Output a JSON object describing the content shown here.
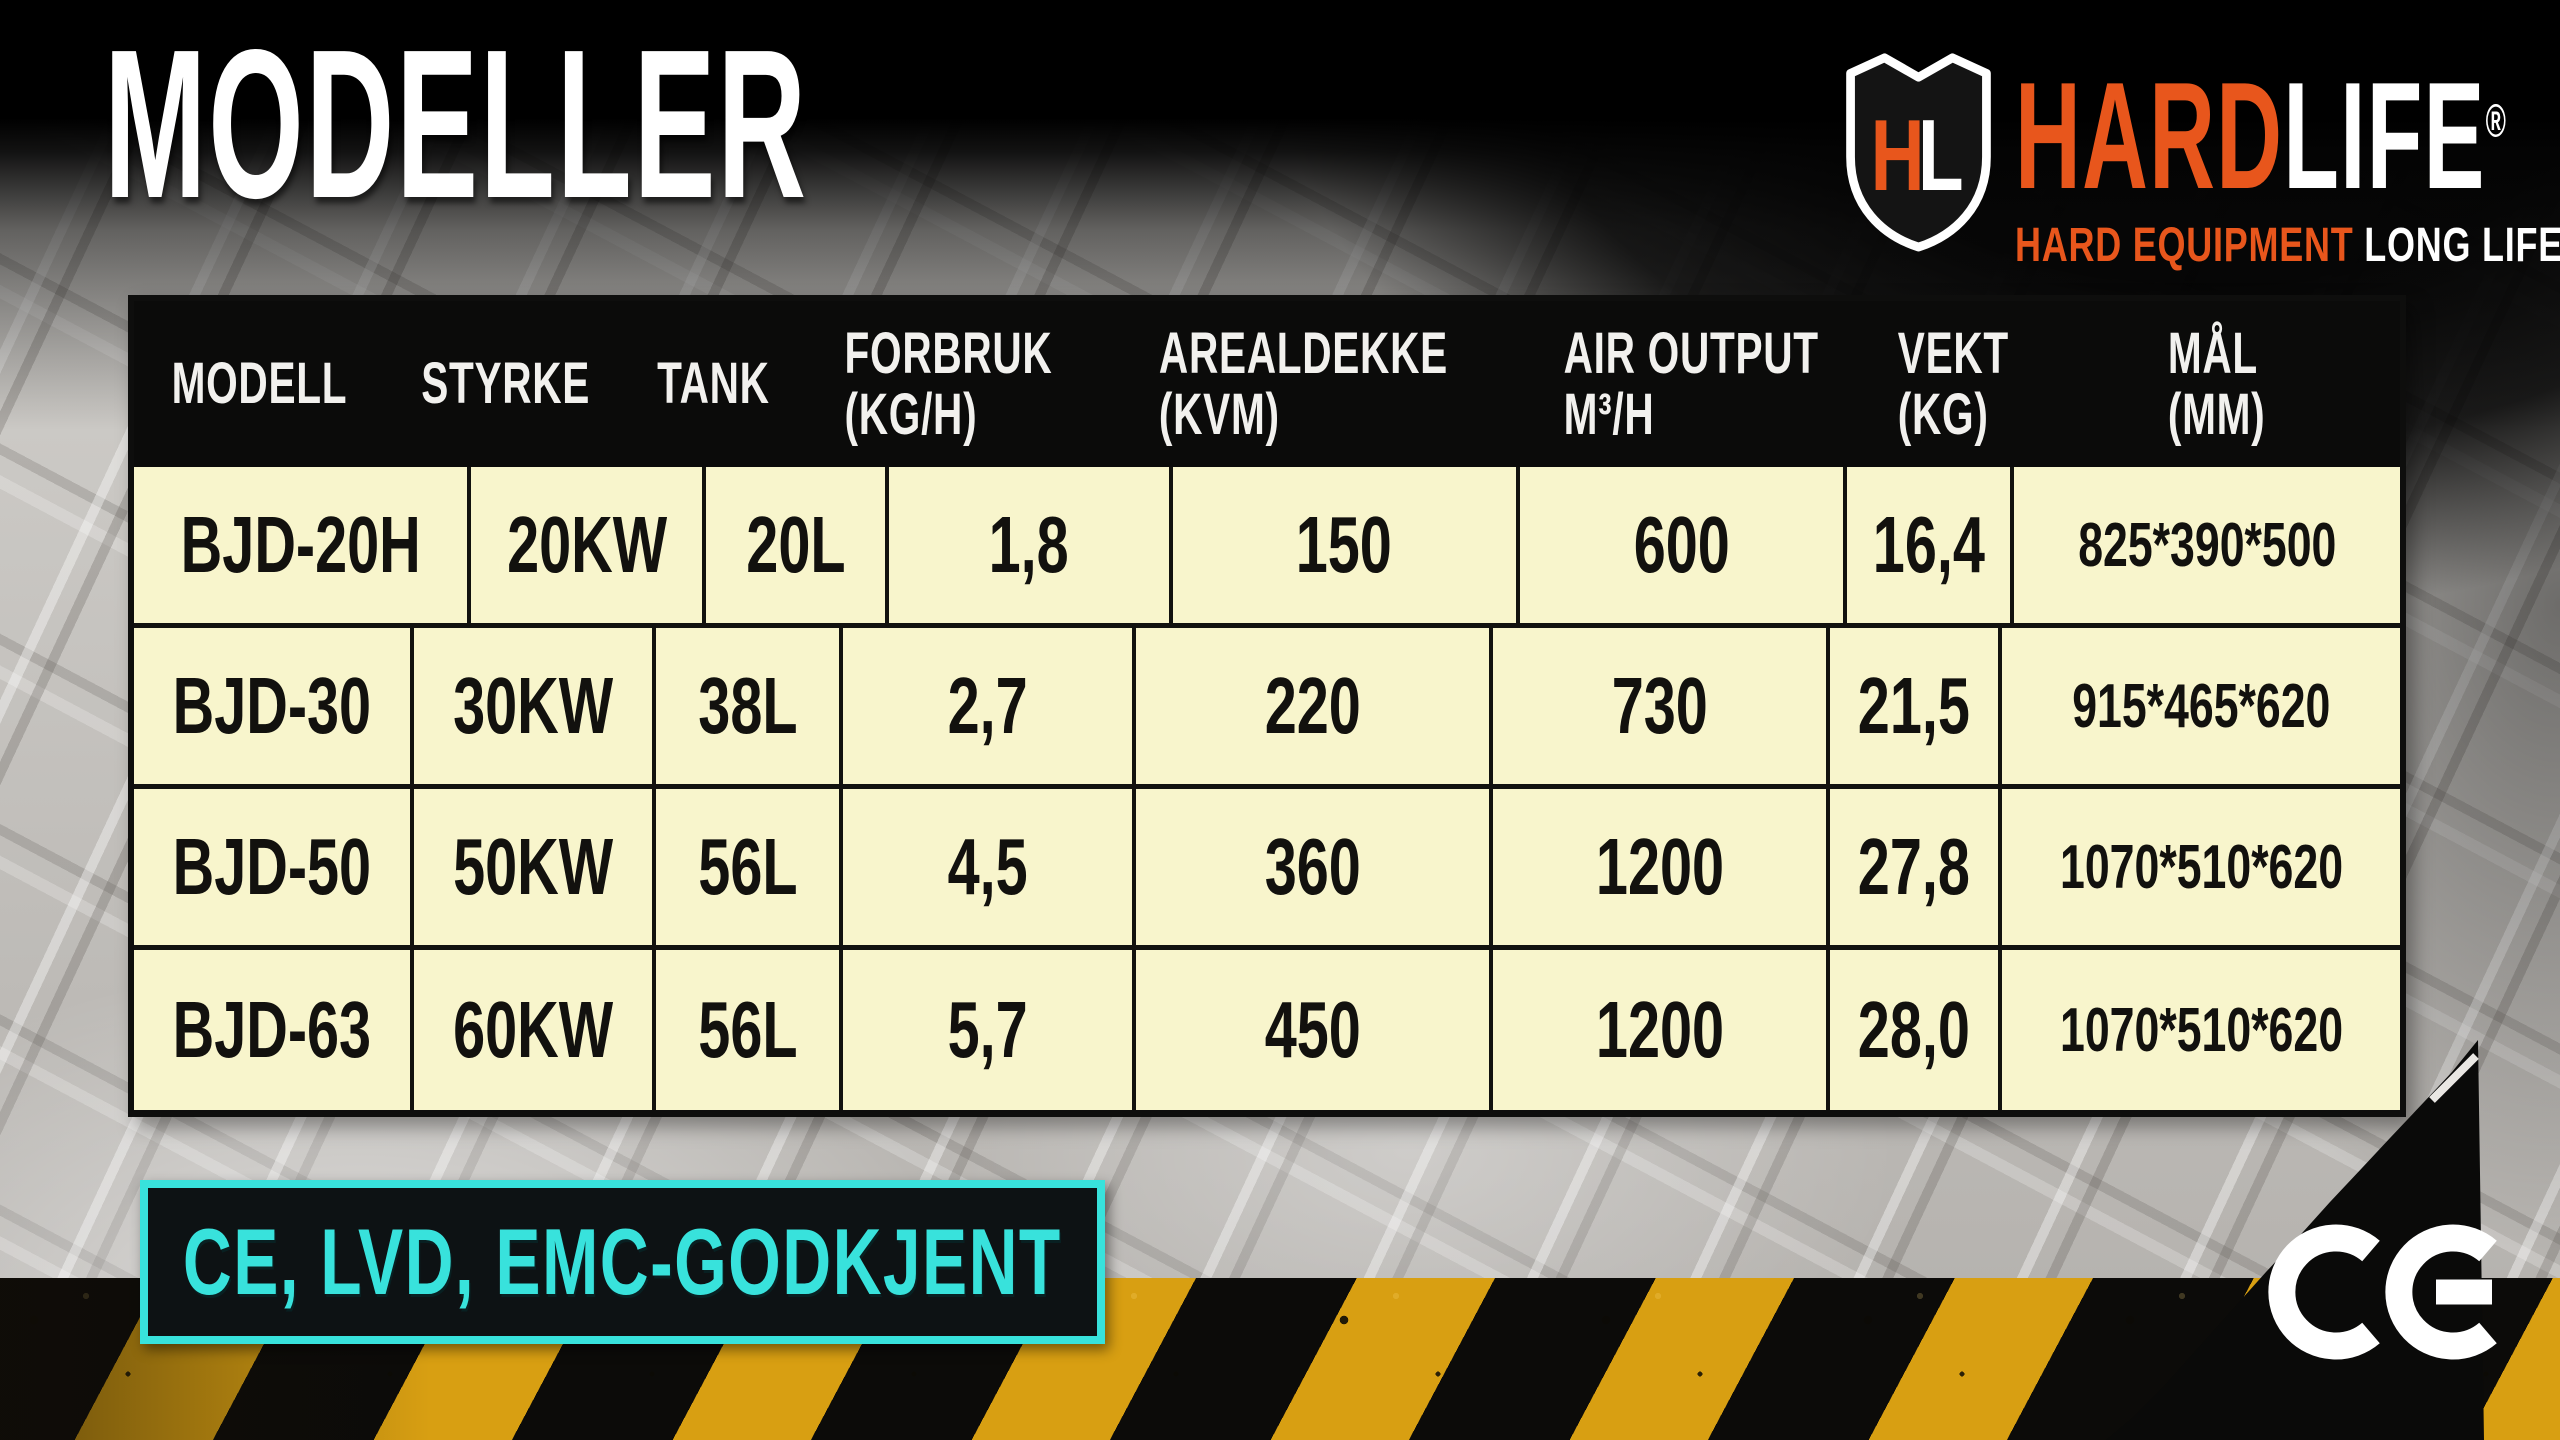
{
  "title": "MODELLER",
  "logo": {
    "shield_h": "H",
    "shield_l": "L",
    "word_hard": "HARD",
    "word_life": "LIFE",
    "reg": "®",
    "tag_hard": "HARD EQUIPMENT",
    "tag_long": "LONG LIFE"
  },
  "table": {
    "columns": [
      {
        "label": "MODELL",
        "sub": ""
      },
      {
        "label": "STYRKE",
        "sub": ""
      },
      {
        "label": "TANK",
        "sub": ""
      },
      {
        "label": "FORBRUK",
        "sub": "(KG/H)"
      },
      {
        "label": "AREALDEKKE",
        "sub": "(KVM)"
      },
      {
        "label": "AIR OUTPUT",
        "sub": "M³/H"
      },
      {
        "label": "VEKT",
        "sub": "(KG)"
      },
      {
        "label": "MÅL",
        "sub": "(MM)"
      }
    ],
    "rows": [
      [
        "BJD-20H",
        "20KW",
        "20L",
        "1,8",
        "150",
        "600",
        "16,4",
        "825*390*500"
      ],
      [
        "BJD-30",
        "30KW",
        "38L",
        "2,7",
        "220",
        "730",
        "21,5",
        "915*465*620"
      ],
      [
        "BJD-50",
        "50KW",
        "56L",
        "4,5",
        "360",
        "1200",
        "27,8",
        "1070*510*620"
      ],
      [
        "BJD-63",
        "60KW",
        "56L",
        "5,7",
        "450",
        "1200",
        "28,0",
        "1070*510*620"
      ]
    ]
  },
  "badge": {
    "text": "CE, LVD, EMC-GODKJENT"
  },
  "ce_mark": "CE",
  "colors": {
    "accent_orange": "#e8561c",
    "table_cream": "#f8f5cc",
    "badge_cyan": "#38e2dc",
    "hazard_yellow": "#d89f12",
    "background_black": "#0b0b0a"
  }
}
